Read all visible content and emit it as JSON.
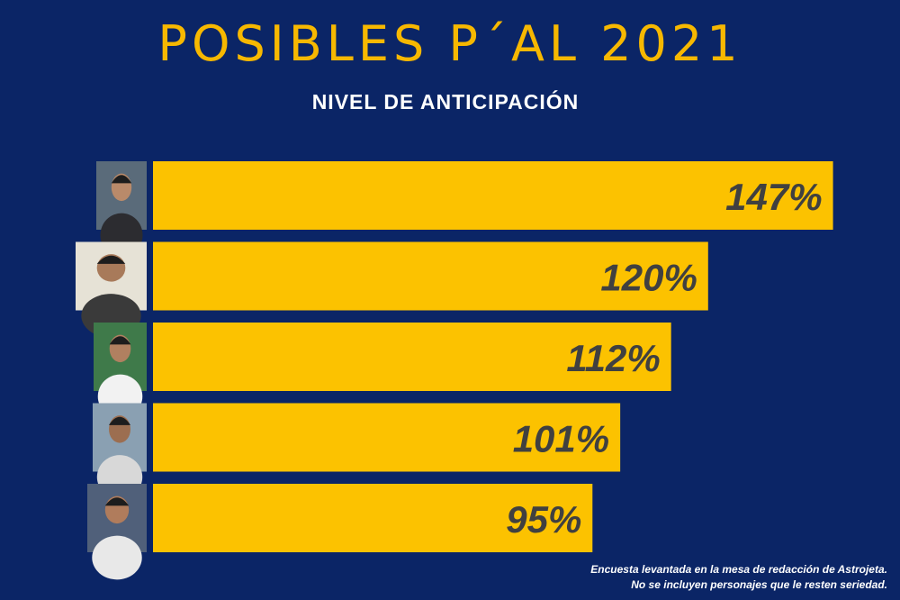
{
  "chart_data": {
    "type": "bar",
    "orientation": "horizontal",
    "title": "POSIBLES P´AL 2021",
    "subtitle": "NIVEL DE ANTICIPACIÓN",
    "values": [
      147,
      120,
      112,
      101,
      95
    ],
    "data_labels": [
      "147%",
      "120%",
      "112%",
      "101%",
      "95%"
    ],
    "category_images": [
      "person-photo",
      "person-photo",
      "person-photo",
      "person-photo",
      "person-photo"
    ],
    "grid": false,
    "colors": {
      "background": "#0b2566",
      "bar": "#fcc200",
      "title": "#f7b800",
      "label": "#404040"
    }
  },
  "footnote": {
    "line1": "Encuesta levantada en la mesa de redacción de Astrojeta.",
    "line2": "No se incluyen personajes que le resten seriedad."
  }
}
